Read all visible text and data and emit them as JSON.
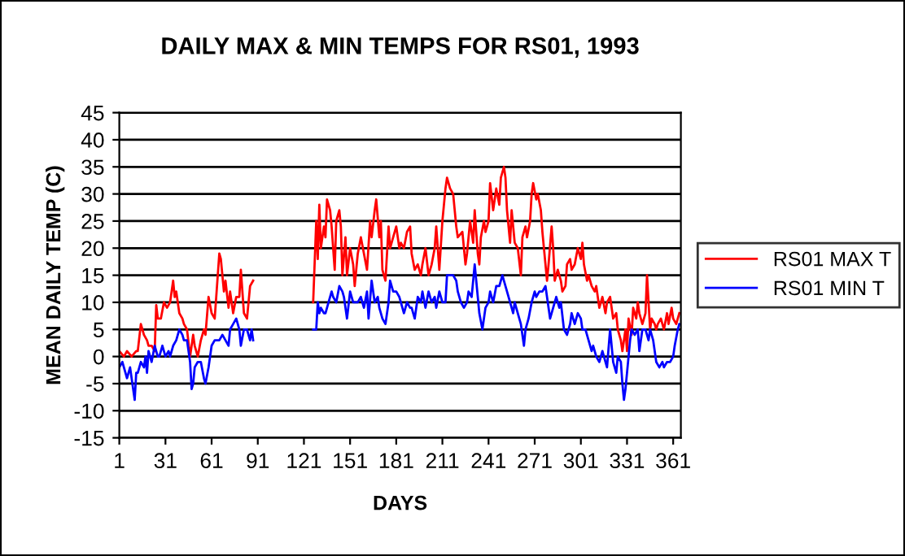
{
  "chart_data": {
    "type": "line",
    "title": "DAILY MAX & MIN TEMPS FOR RS01, 1993",
    "xlabel": "DAYS",
    "ylabel": "MEAN DAILY TEMP (C)",
    "xlim": [
      1,
      366
    ],
    "xticks": [
      1,
      31,
      61,
      91,
      121,
      151,
      181,
      211,
      241,
      271,
      301,
      331,
      361
    ],
    "ylim": [
      -15,
      45
    ],
    "yticks": [
      -15,
      -10,
      -5,
      0,
      5,
      10,
      15,
      20,
      25,
      30,
      35,
      40,
      45
    ],
    "grid": "y",
    "legend": "right",
    "marker": "none",
    "line_style": "solid",
    "series": [
      {
        "name": "RS01 MAX T",
        "color": "#ff0000",
        "x": [
          1,
          4,
          6,
          9,
          12,
          13,
          15,
          17,
          19,
          20,
          22,
          24,
          25,
          26,
          28,
          30,
          32,
          34,
          36,
          37,
          38,
          40,
          42,
          43,
          45,
          47,
          49,
          50,
          52,
          54,
          56,
          57,
          59,
          61,
          63,
          64,
          66,
          67,
          69,
          70,
          72,
          73,
          75,
          77,
          79,
          80,
          82,
          84,
          86,
          88,
          100,
          127,
          129,
          130,
          131,
          132,
          134,
          135,
          136,
          138,
          139,
          141,
          142,
          144,
          145,
          146,
          148,
          149,
          151,
          153,
          154,
          156,
          158,
          160,
          162,
          164,
          165,
          167,
          168,
          170,
          171,
          172,
          174,
          176,
          177,
          179,
          181,
          183,
          184,
          186,
          188,
          190,
          191,
          193,
          195,
          197,
          198,
          200,
          202,
          204,
          206,
          207,
          209,
          211,
          213,
          214,
          216,
          218,
          220,
          221,
          224,
          226,
          227,
          229,
          231,
          232,
          234,
          235,
          236,
          238,
          239,
          241,
          242,
          244,
          245,
          246,
          248,
          249,
          251,
          252,
          253,
          255,
          256,
          258,
          260,
          262,
          263,
          265,
          266,
          268,
          269,
          270,
          272,
          273,
          275,
          276,
          277,
          279,
          280,
          282,
          283,
          284,
          286,
          288,
          289,
          291,
          292,
          294,
          295,
          297,
          299,
          301,
          302,
          303,
          305,
          306,
          308,
          310,
          311,
          313,
          315,
          317,
          318,
          320,
          322,
          324,
          325,
          327,
          328,
          330,
          331,
          332,
          334,
          335,
          337,
          338,
          339,
          341,
          343,
          344,
          346,
          347,
          349,
          350,
          351,
          353,
          355,
          357,
          358,
          360,
          361,
          363,
          365
        ],
        "values": [
          1,
          0,
          1,
          0,
          1,
          1,
          6,
          4,
          3,
          2,
          2,
          1,
          9.5,
          7,
          7,
          10,
          9,
          10,
          14,
          11,
          12,
          8,
          7,
          6,
          5,
          0,
          4,
          2,
          0,
          3,
          5,
          4,
          11,
          8,
          7,
          11,
          19,
          18,
          12,
          14,
          9,
          12,
          8,
          11,
          11,
          16,
          8,
          7,
          13,
          14,
          null,
          10,
          25,
          18,
          28,
          20,
          24,
          22,
          29,
          27,
          24,
          16,
          25,
          27,
          24,
          15,
          22,
          15,
          20,
          17,
          13,
          19,
          22,
          19,
          16,
          25,
          22,
          27,
          29,
          22,
          25,
          16,
          14,
          24,
          20,
          22,
          24,
          20,
          21,
          20,
          23,
          24,
          19,
          16,
          17,
          15,
          17,
          20,
          15,
          17,
          20,
          24,
          16,
          25,
          31,
          33,
          31,
          30,
          24,
          22,
          23,
          17,
          19,
          25,
          21,
          27,
          19,
          17,
          22,
          25,
          23,
          25,
          32,
          27,
          29,
          31,
          28,
          33,
          35,
          33,
          27,
          21,
          27,
          21,
          20,
          15,
          22,
          24,
          22,
          25,
          30,
          32,
          29,
          30,
          27,
          23,
          20,
          14,
          17,
          24,
          20,
          14,
          16,
          14,
          12,
          13,
          17,
          18,
          16,
          17,
          20,
          18,
          21,
          17,
          14,
          15,
          13,
          12,
          13,
          9,
          11,
          8,
          10,
          11,
          7,
          8,
          5,
          3,
          1,
          5,
          1,
          7,
          4,
          9,
          7,
          10,
          8,
          6,
          8,
          15,
          5,
          7,
          6,
          5,
          6,
          7,
          5,
          8,
          6,
          9,
          7,
          6,
          8
        ]
      },
      {
        "name": "RS01 MIN T",
        "color": "#0000ff",
        "x": [
          1,
          3,
          5,
          6,
          8,
          10,
          11,
          12,
          13,
          15,
          17,
          18,
          19,
          20,
          22,
          24,
          26,
          27,
          29,
          31,
          33,
          34,
          36,
          38,
          40,
          42,
          43,
          45,
          47,
          48,
          49,
          50,
          52,
          54,
          56,
          57,
          59,
          61,
          63,
          64,
          66,
          68,
          70,
          72,
          73,
          75,
          77,
          79,
          80,
          82,
          84,
          86,
          87,
          88,
          100,
          127,
          129,
          130,
          131,
          132,
          134,
          135,
          137,
          139,
          140,
          142,
          144,
          146,
          147,
          149,
          151,
          153,
          154,
          156,
          158,
          160,
          162,
          163,
          165,
          167,
          169,
          170,
          172,
          174,
          176,
          177,
          179,
          181,
          183,
          184,
          186,
          188,
          190,
          191,
          193,
          195,
          197,
          198,
          200,
          202,
          204,
          206,
          207,
          209,
          211,
          213,
          214,
          216,
          218,
          220,
          221,
          223,
          225,
          227,
          228,
          230,
          232,
          234,
          235,
          237,
          239,
          241,
          242,
          244,
          246,
          248,
          250,
          251,
          253,
          255,
          257,
          258,
          260,
          262,
          264,
          265,
          267,
          269,
          271,
          272,
          274,
          276,
          278,
          279,
          281,
          283,
          285,
          287,
          288,
          290,
          292,
          294,
          295,
          297,
          299,
          301,
          302,
          304,
          306,
          308,
          309,
          311,
          313,
          315,
          316,
          318,
          320,
          322,
          324,
          325,
          327,
          328,
          329,
          330,
          332,
          333,
          334,
          336,
          338,
          339,
          341,
          343,
          345,
          346,
          348,
          350,
          352,
          354,
          355,
          357,
          359,
          361,
          362,
          364,
          365
        ],
        "values": [
          -2,
          -1,
          -3,
          -4,
          -2,
          -6,
          -8,
          -3,
          -3,
          -1,
          -2,
          0,
          -3,
          1,
          -1,
          2,
          0,
          0,
          2,
          0,
          1,
          0,
          2,
          3,
          5,
          4,
          3,
          3,
          -1,
          -6,
          -5,
          -2,
          -1,
          -1,
          -4,
          -5,
          -2,
          2,
          3,
          3,
          3,
          4,
          3,
          2,
          5,
          6,
          7,
          5,
          2,
          5,
          5,
          3,
          5,
          3,
          null,
          5,
          5,
          10,
          8,
          9,
          8,
          8,
          10,
          12,
          11,
          10,
          13,
          12,
          11,
          7,
          12,
          10,
          10,
          10,
          11,
          9,
          12,
          7,
          14,
          10,
          11,
          9,
          7,
          6,
          10,
          14,
          12,
          12,
          11,
          10,
          8,
          10,
          9,
          9,
          7,
          11,
          10,
          12,
          9,
          12,
          10,
          11,
          9,
          12,
          10,
          10,
          15,
          15,
          15,
          14,
          12,
          10,
          9,
          10,
          12,
          11,
          17,
          11,
          8,
          5,
          9,
          10,
          12,
          10,
          13,
          13,
          15,
          14,
          12,
          10,
          8,
          10,
          8,
          6,
          2,
          5,
          7,
          10,
          12,
          11,
          12,
          12,
          13,
          11,
          7,
          9,
          11,
          9,
          10,
          5,
          4,
          6,
          8,
          6,
          8,
          7,
          5,
          5,
          3,
          1,
          2,
          0,
          -1,
          1,
          0,
          -2,
          5,
          -1,
          -3,
          0,
          -1,
          -5,
          -8,
          -6,
          0,
          3,
          5,
          4,
          5,
          1,
          5,
          5,
          3,
          5,
          3,
          -1,
          -2,
          -1,
          -2,
          -1,
          -1,
          0,
          2,
          5,
          6
        ]
      }
    ]
  }
}
